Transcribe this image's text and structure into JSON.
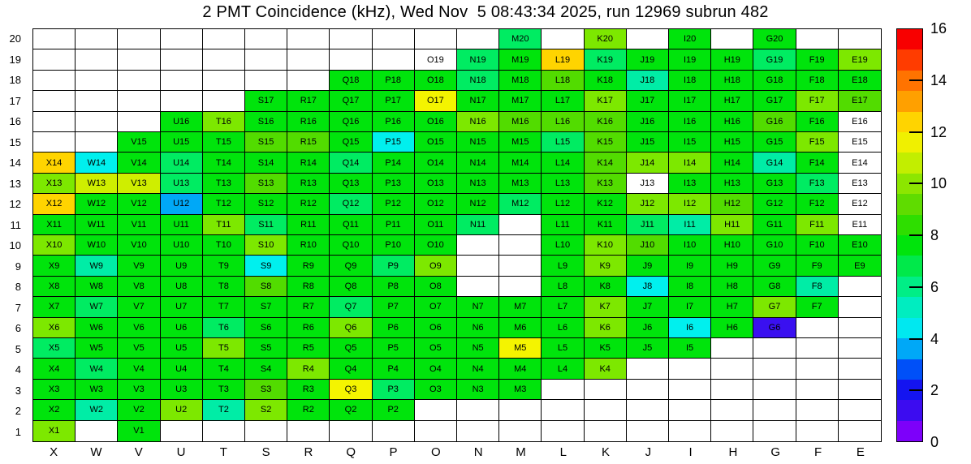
{
  "chart_data": {
    "type": "heatmap",
    "title": "2 PMT Coincidence (kHz), Wed Nov  5 08:43:34 2025, run 12969 subrun 482",
    "xlabel": "",
    "ylabel": "",
    "columns": [
      "X",
      "W",
      "V",
      "U",
      "T",
      "S",
      "R",
      "Q",
      "P",
      "O",
      "N",
      "M",
      "L",
      "K",
      "J",
      "I",
      "H",
      "G",
      "F",
      "E"
    ],
    "rows_top_to_bottom": [
      "20",
      "19",
      "18",
      "17",
      "16",
      "15",
      "14",
      "13",
      "12",
      "11",
      "10",
      "9",
      "8",
      "7",
      "6",
      "5",
      "4",
      "3",
      "2",
      "1"
    ],
    "palette": {
      "G": "#00e40c",
      "G2": "#52dc00",
      "C": "#7de800",
      "YG": "#cfee00",
      "Y": "#f4f400",
      "GD": "#ffd400",
      "SP": "#00ec62",
      "TE": "#00eda6",
      "CY": "#00f0ee",
      "AZ": "#00a8f7",
      "BV": "#3a10f0",
      "W": "#ffffff"
    },
    "approx_value_by_color": {
      "BV": 1,
      "AZ": 3.6,
      "CY": 4.6,
      "TE": 5.4,
      "SP": 6.2,
      "G": 7.8,
      "G2": 9.2,
      "C": 10,
      "YG": 11,
      "Y": 11.6,
      "GD": 12.4,
      "W": 0
    },
    "grid": [
      [
        null,
        null,
        null,
        null,
        null,
        null,
        null,
        null,
        null,
        null,
        null,
        [
          "M20",
          "SP"
        ],
        null,
        [
          "K20",
          "C"
        ],
        null,
        [
          "I20",
          "G"
        ],
        null,
        [
          "G20",
          "G"
        ],
        null,
        null
      ],
      [
        null,
        null,
        null,
        null,
        null,
        null,
        null,
        null,
        null,
        [
          "O19",
          "W"
        ],
        [
          "N19",
          "SP"
        ],
        [
          "M19",
          "G"
        ],
        [
          "L19",
          "GD"
        ],
        [
          "K19",
          "SP"
        ],
        [
          "J19",
          "G"
        ],
        [
          "I19",
          "G"
        ],
        [
          "H19",
          "G"
        ],
        [
          "G19",
          "SP"
        ],
        [
          "F19",
          "G"
        ],
        [
          "E19",
          "C"
        ]
      ],
      [
        null,
        null,
        null,
        null,
        null,
        null,
        null,
        [
          "Q18",
          "G"
        ],
        [
          "P18",
          "G"
        ],
        [
          "O18",
          "G"
        ],
        [
          "N18",
          "SP"
        ],
        [
          "M18",
          "G"
        ],
        [
          "L18",
          "G2"
        ],
        [
          "K18",
          "G"
        ],
        [
          "J18",
          "TE"
        ],
        [
          "I18",
          "G"
        ],
        [
          "H18",
          "G"
        ],
        [
          "G18",
          "G"
        ],
        [
          "F18",
          "G"
        ],
        [
          "E18",
          "G"
        ]
      ],
      [
        null,
        null,
        null,
        null,
        null,
        [
          "S17",
          "G"
        ],
        [
          "R17",
          "G"
        ],
        [
          "Q17",
          "G"
        ],
        [
          "P17",
          "G"
        ],
        [
          "O17",
          "Y"
        ],
        [
          "N17",
          "G"
        ],
        [
          "M17",
          "G"
        ],
        [
          "L17",
          "G"
        ],
        [
          "K17",
          "C"
        ],
        [
          "J17",
          "G"
        ],
        [
          "I17",
          "G"
        ],
        [
          "H17",
          "G"
        ],
        [
          "G17",
          "G"
        ],
        [
          "F17",
          "C"
        ],
        [
          "E17",
          "G2"
        ]
      ],
      [
        null,
        null,
        null,
        [
          "U16",
          "G"
        ],
        [
          "T16",
          "C"
        ],
        [
          "S16",
          "G"
        ],
        [
          "R16",
          "G"
        ],
        [
          "Q16",
          "G"
        ],
        [
          "P16",
          "G"
        ],
        [
          "O16",
          "G"
        ],
        [
          "N16",
          "C"
        ],
        [
          "M16",
          "G2"
        ],
        [
          "L16",
          "G2"
        ],
        [
          "K16",
          "G2"
        ],
        [
          "J16",
          "G"
        ],
        [
          "I16",
          "G"
        ],
        [
          "H16",
          "G"
        ],
        [
          "G16",
          "G2"
        ],
        [
          "F16",
          "G"
        ],
        [
          "E16",
          "W"
        ]
      ],
      [
        null,
        null,
        [
          "V15",
          "G"
        ],
        [
          "U15",
          "G"
        ],
        [
          "T15",
          "G"
        ],
        [
          "S15",
          "G2"
        ],
        [
          "R15",
          "G2"
        ],
        [
          "Q15",
          "G"
        ],
        [
          "P15",
          "CY"
        ],
        [
          "O15",
          "G"
        ],
        [
          "N15",
          "G"
        ],
        [
          "M15",
          "G"
        ],
        [
          "L15",
          "SP"
        ],
        [
          "K15",
          "G2"
        ],
        [
          "J15",
          "G"
        ],
        [
          "I15",
          "G"
        ],
        [
          "H15",
          "G"
        ],
        [
          "G15",
          "G"
        ],
        [
          "F15",
          "C"
        ],
        [
          "E15",
          "W"
        ]
      ],
      [
        [
          "X14",
          "GD"
        ],
        [
          "W14",
          "CY"
        ],
        [
          "V14",
          "G"
        ],
        [
          "U14",
          "SP"
        ],
        [
          "T14",
          "G"
        ],
        [
          "S14",
          "G"
        ],
        [
          "R14",
          "G"
        ],
        [
          "Q14",
          "SP"
        ],
        [
          "P14",
          "G"
        ],
        [
          "O14",
          "G"
        ],
        [
          "N14",
          "G"
        ],
        [
          "M14",
          "G"
        ],
        [
          "L14",
          "G"
        ],
        [
          "K14",
          "G2"
        ],
        [
          "J14",
          "C"
        ],
        [
          "I14",
          "C"
        ],
        [
          "H14",
          "G"
        ],
        [
          "G14",
          "TE"
        ],
        [
          "F14",
          "G"
        ],
        [
          "E14",
          "W"
        ]
      ],
      [
        [
          "X13",
          "C"
        ],
        [
          "W13",
          "YG"
        ],
        [
          "V13",
          "YG"
        ],
        [
          "U13",
          "SP"
        ],
        [
          "T13",
          "G"
        ],
        [
          "S13",
          "G2"
        ],
        [
          "R13",
          "G"
        ],
        [
          "Q13",
          "G"
        ],
        [
          "P13",
          "G"
        ],
        [
          "O13",
          "G"
        ],
        [
          "N13",
          "G"
        ],
        [
          "M13",
          "G"
        ],
        [
          "L13",
          "G"
        ],
        [
          "K13",
          "G2"
        ],
        [
          "J13",
          "W"
        ],
        [
          "I13",
          "G"
        ],
        [
          "H13",
          "G"
        ],
        [
          "G13",
          "G"
        ],
        [
          "F13",
          "SP"
        ],
        [
          "E13",
          "W"
        ]
      ],
      [
        [
          "X12",
          "GD"
        ],
        [
          "W12",
          "G"
        ],
        [
          "V12",
          "G"
        ],
        [
          "U12",
          "AZ"
        ],
        [
          "T12",
          "G"
        ],
        [
          "S12",
          "G"
        ],
        [
          "R12",
          "G"
        ],
        [
          "Q12",
          "SP"
        ],
        [
          "P12",
          "G"
        ],
        [
          "O12",
          "G"
        ],
        [
          "N12",
          "G"
        ],
        [
          "M12",
          "SP"
        ],
        [
          "L12",
          "G"
        ],
        [
          "K12",
          "G"
        ],
        [
          "J12",
          "C"
        ],
        [
          "I12",
          "C"
        ],
        [
          "H12",
          "G2"
        ],
        [
          "G12",
          "G"
        ],
        [
          "F12",
          "G"
        ],
        [
          "E12",
          "W"
        ]
      ],
      [
        [
          "X11",
          "G"
        ],
        [
          "W11",
          "G"
        ],
        [
          "V11",
          "G"
        ],
        [
          "U11",
          "G"
        ],
        [
          "T11",
          "C"
        ],
        [
          "S11",
          "SP"
        ],
        [
          "R11",
          "G"
        ],
        [
          "Q11",
          "G"
        ],
        [
          "P11",
          "G"
        ],
        [
          "O11",
          "G"
        ],
        [
          "N11",
          "SP"
        ],
        null,
        [
          "L11",
          "G"
        ],
        [
          "K11",
          "G"
        ],
        [
          "J11",
          "SP"
        ],
        [
          "I11",
          "TE"
        ],
        [
          "H11",
          "C"
        ],
        [
          "G11",
          "G"
        ],
        [
          "F11",
          "C"
        ],
        [
          "E11",
          "W"
        ]
      ],
      [
        [
          "X10",
          "C"
        ],
        [
          "W10",
          "G"
        ],
        [
          "V10",
          "G"
        ],
        [
          "U10",
          "G"
        ],
        [
          "T10",
          "G"
        ],
        [
          "S10",
          "C"
        ],
        [
          "R10",
          "G"
        ],
        [
          "Q10",
          "G"
        ],
        [
          "P10",
          "G"
        ],
        [
          "O10",
          "G"
        ],
        null,
        null,
        [
          "L10",
          "G"
        ],
        [
          "K10",
          "C"
        ],
        [
          "J10",
          "G2"
        ],
        [
          "I10",
          "G"
        ],
        [
          "H10",
          "G"
        ],
        [
          "G10",
          "G"
        ],
        [
          "F10",
          "G"
        ],
        [
          "E10",
          "G"
        ]
      ],
      [
        [
          "X9",
          "G"
        ],
        [
          "W9",
          "TE"
        ],
        [
          "V9",
          "G"
        ],
        [
          "U9",
          "G"
        ],
        [
          "T9",
          "G"
        ],
        [
          "S9",
          "CY"
        ],
        [
          "R9",
          "G"
        ],
        [
          "Q9",
          "G"
        ],
        [
          "P9",
          "SP"
        ],
        [
          "O9",
          "C"
        ],
        null,
        null,
        [
          "L9",
          "G"
        ],
        [
          "K9",
          "C"
        ],
        [
          "J9",
          "G"
        ],
        [
          "I9",
          "G"
        ],
        [
          "H9",
          "G"
        ],
        [
          "G9",
          "G"
        ],
        [
          "F9",
          "G"
        ],
        [
          "E9",
          "G"
        ]
      ],
      [
        [
          "X8",
          "G"
        ],
        [
          "W8",
          "G"
        ],
        [
          "V8",
          "G"
        ],
        [
          "U8",
          "G"
        ],
        [
          "T8",
          "G"
        ],
        [
          "S8",
          "G2"
        ],
        [
          "R8",
          "G"
        ],
        [
          "Q8",
          "G"
        ],
        [
          "P8",
          "G"
        ],
        [
          "O8",
          "G"
        ],
        null,
        null,
        [
          "L8",
          "G"
        ],
        [
          "K8",
          "G"
        ],
        [
          "J8",
          "CY"
        ],
        [
          "I8",
          "G"
        ],
        [
          "H8",
          "G"
        ],
        [
          "G8",
          "G"
        ],
        [
          "F8",
          "TE"
        ],
        null
      ],
      [
        [
          "X7",
          "G"
        ],
        [
          "W7",
          "SP"
        ],
        [
          "V7",
          "G"
        ],
        [
          "U7",
          "G"
        ],
        [
          "T7",
          "G"
        ],
        [
          "S7",
          "G"
        ],
        [
          "R7",
          "G"
        ],
        [
          "Q7",
          "SP"
        ],
        [
          "P7",
          "G"
        ],
        [
          "O7",
          "G"
        ],
        [
          "N7",
          "G"
        ],
        [
          "M7",
          "G"
        ],
        [
          "L7",
          "G"
        ],
        [
          "K7",
          "C"
        ],
        [
          "J7",
          "G"
        ],
        [
          "I7",
          "G"
        ],
        [
          "H7",
          "G"
        ],
        [
          "G7",
          "C"
        ],
        [
          "F7",
          "G"
        ],
        null
      ],
      [
        [
          "X6",
          "C"
        ],
        [
          "W6",
          "G"
        ],
        [
          "V6",
          "G"
        ],
        [
          "U6",
          "G"
        ],
        [
          "T6",
          "SP"
        ],
        [
          "S6",
          "G"
        ],
        [
          "R6",
          "G"
        ],
        [
          "Q6",
          "C"
        ],
        [
          "P6",
          "G"
        ],
        [
          "O6",
          "G"
        ],
        [
          "N6",
          "G"
        ],
        [
          "M6",
          "G"
        ],
        [
          "L6",
          "G"
        ],
        [
          "K6",
          "C"
        ],
        [
          "J6",
          "G"
        ],
        [
          "I6",
          "CY"
        ],
        [
          "H6",
          "G"
        ],
        [
          "G6",
          "BV"
        ],
        null,
        null
      ],
      [
        [
          "X5",
          "SP"
        ],
        [
          "W5",
          "G"
        ],
        [
          "V5",
          "G"
        ],
        [
          "U5",
          "G"
        ],
        [
          "T5",
          "C"
        ],
        [
          "S5",
          "G"
        ],
        [
          "R5",
          "G"
        ],
        [
          "Q5",
          "G"
        ],
        [
          "P5",
          "G"
        ],
        [
          "O5",
          "G"
        ],
        [
          "N5",
          "G"
        ],
        [
          "M5",
          "Y"
        ],
        [
          "L5",
          "G"
        ],
        [
          "K5",
          "G"
        ],
        [
          "J5",
          "G"
        ],
        [
          "I5",
          "G"
        ],
        null,
        null,
        null,
        null
      ],
      [
        [
          "X4",
          "G"
        ],
        [
          "W4",
          "SP"
        ],
        [
          "V4",
          "G"
        ],
        [
          "U4",
          "G"
        ],
        [
          "T4",
          "G"
        ],
        [
          "S4",
          "G"
        ],
        [
          "R4",
          "C"
        ],
        [
          "Q4",
          "G"
        ],
        [
          "P4",
          "G"
        ],
        [
          "O4",
          "G"
        ],
        [
          "N4",
          "G"
        ],
        [
          "M4",
          "G"
        ],
        [
          "L4",
          "G"
        ],
        [
          "K4",
          "C"
        ],
        null,
        null,
        null,
        null,
        null,
        null
      ],
      [
        [
          "X3",
          "G"
        ],
        [
          "W3",
          "G"
        ],
        [
          "V3",
          "G"
        ],
        [
          "U3",
          "G"
        ],
        [
          "T3",
          "G"
        ],
        [
          "S3",
          "G2"
        ],
        [
          "R3",
          "G"
        ],
        [
          "Q3",
          "Y"
        ],
        [
          "P3",
          "SP"
        ],
        [
          "O3",
          "G"
        ],
        [
          "N3",
          "G"
        ],
        [
          "M3",
          "G"
        ],
        null,
        null,
        null,
        null,
        null,
        null,
        null,
        null
      ],
      [
        [
          "X2",
          "G"
        ],
        [
          "W2",
          "TE"
        ],
        [
          "V2",
          "G"
        ],
        [
          "U2",
          "C"
        ],
        [
          "T2",
          "TE"
        ],
        [
          "S2",
          "C"
        ],
        [
          "R2",
          "G"
        ],
        [
          "Q2",
          "G"
        ],
        [
          "P2",
          "G"
        ],
        null,
        null,
        null,
        null,
        null,
        null,
        null,
        null,
        null,
        null,
        null
      ],
      [
        [
          "X1",
          "C"
        ],
        null,
        [
          "V1",
          "G"
        ],
        null,
        null,
        null,
        null,
        null,
        null,
        null,
        null,
        null,
        null,
        null,
        null,
        null,
        null,
        null,
        null,
        null
      ]
    ]
  },
  "colorbar": {
    "min": 0,
    "max": 16,
    "tick_values": [
      16,
      14,
      12,
      10,
      8,
      6,
      4,
      2,
      0
    ],
    "tick_line_values": [
      14,
      12,
      10,
      8,
      6,
      4,
      2
    ],
    "bands_top_to_bottom": [
      "#f80000",
      "#ff3c00",
      "#ff7300",
      "#ffa000",
      "#ffd400",
      "#f0f000",
      "#c2ee00",
      "#8ce600",
      "#5fdc00",
      "#2ede00",
      "#00e40c",
      "#00e94a",
      "#00ee86",
      "#00edc0",
      "#00e8f0",
      "#00a8f7",
      "#0050f8",
      "#1414f0",
      "#3c0cf0",
      "#7d00fa"
    ]
  }
}
